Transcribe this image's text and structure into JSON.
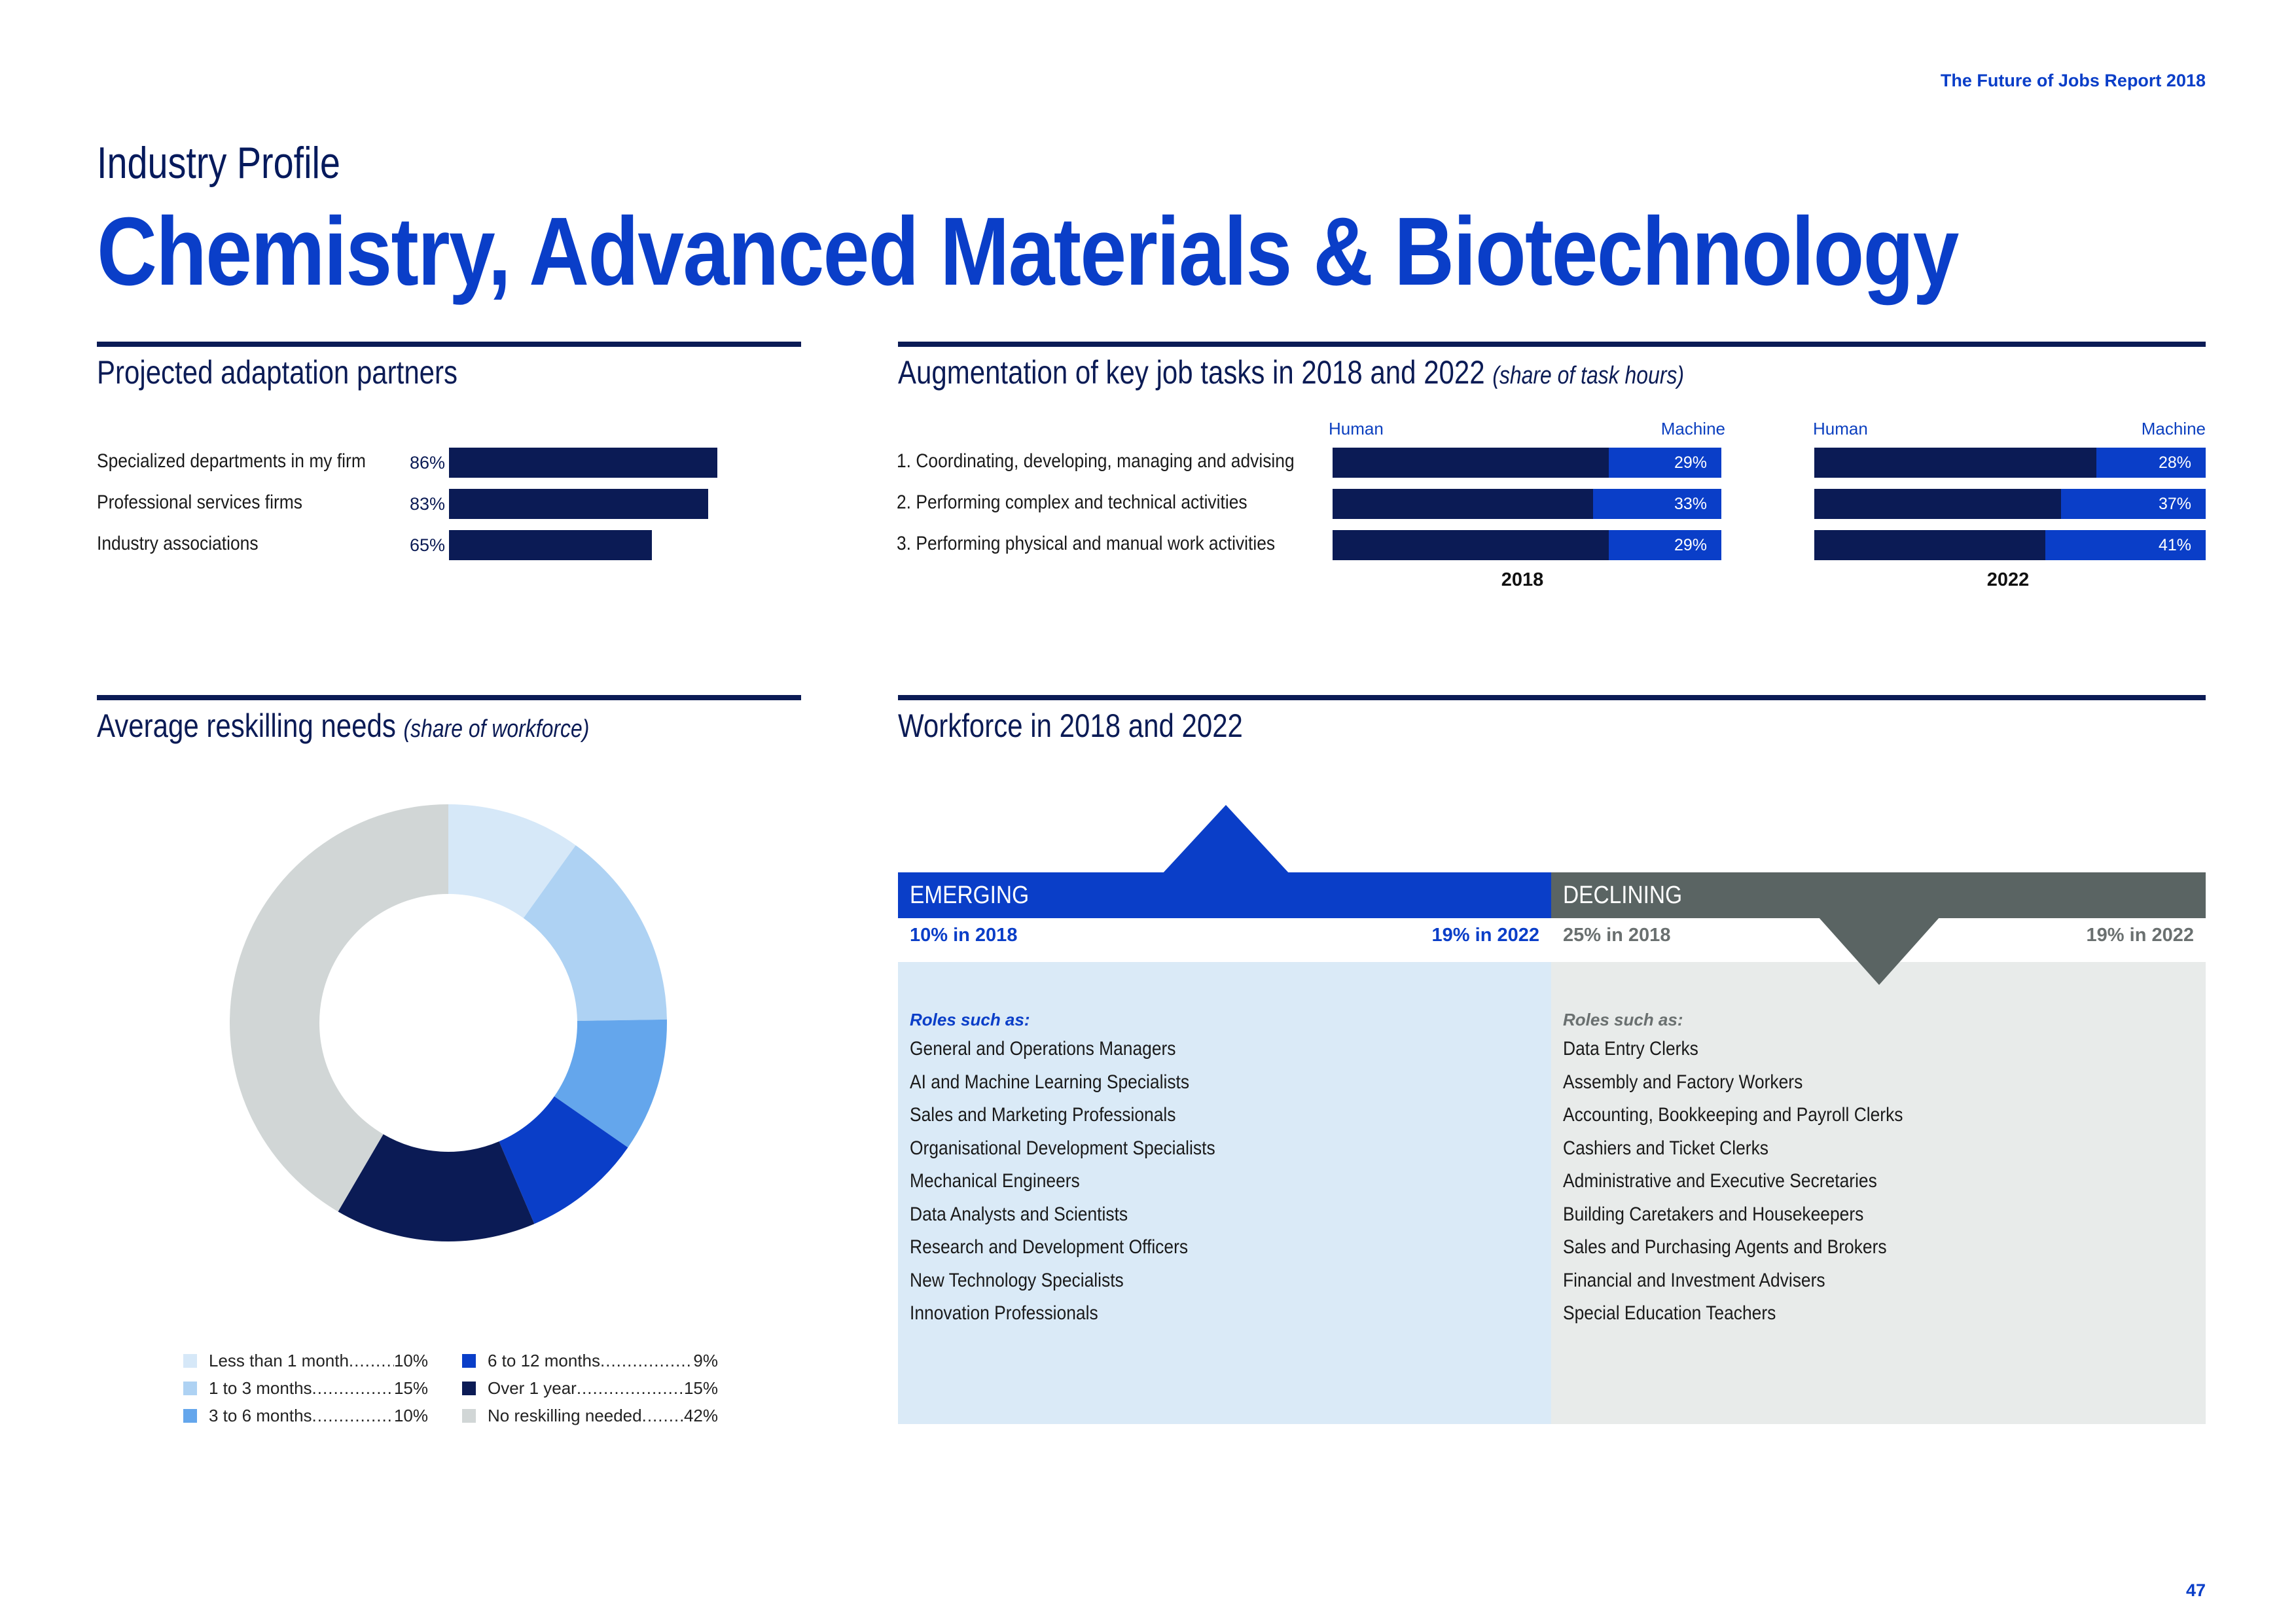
{
  "header": {
    "report_title": "The Future of Jobs Report 2018",
    "profile_label": "Industry Profile",
    "industry_title": "Chemistry, Advanced Materials & Biotechnology"
  },
  "partners": {
    "title": "Projected adaptation partners",
    "items": [
      {
        "label": "Specialized departments in my firm",
        "pct": "86%",
        "value": 86
      },
      {
        "label": "Professional services firms",
        "pct": "83%",
        "value": 83
      },
      {
        "label": "Industry associations",
        "pct": "65%",
        "value": 65
      }
    ]
  },
  "augmentation": {
    "title": "Augmentation of key job tasks in 2018 and 2022",
    "title_note": "(share of task hours)",
    "human_label": "Human",
    "machine_label": "Machine",
    "tasks": [
      "1.  Coordinating, developing, managing and advising",
      "2.  Performing complex and technical activities",
      "3.  Performing physical and manual work activities"
    ],
    "year_2018": "2018",
    "year_2022": "2022",
    "machine_2018": [
      {
        "label": "29%",
        "value": 29
      },
      {
        "label": "33%",
        "value": 33
      },
      {
        "label": "29%",
        "value": 29
      }
    ],
    "machine_2022": [
      {
        "label": "28%",
        "value": 28
      },
      {
        "label": "37%",
        "value": 37
      },
      {
        "label": "41%",
        "value": 41
      }
    ]
  },
  "reskilling": {
    "title": "Average reskilling needs",
    "title_note": "(share of workforce)",
    "segments": [
      {
        "name": "Less than 1 month",
        "value": 10,
        "label": "10%",
        "color": "#d6e8f8"
      },
      {
        "name": "1 to 3 months",
        "value": 15,
        "label": "15%",
        "color": "#aed2f3"
      },
      {
        "name": "3 to 6 months",
        "value": 10,
        "label": "10%",
        "color": "#64a6ec"
      },
      {
        "name": "6 to 12 months",
        "value": 9,
        "label": "9%",
        "color": "#0a3ec8"
      },
      {
        "name": "Over 1 year",
        "value": 15,
        "label": "15%",
        "color": "#0b1b55"
      },
      {
        "name": "No reskilling needed",
        "value": 42,
        "label": "42%",
        "color": "#d1d6d6"
      }
    ],
    "dots": "........................................"
  },
  "workforce": {
    "title": "Workforce in 2018 and 2022",
    "emerging": {
      "label": "EMERGING",
      "from": "10% in 2018",
      "to": "19% in 2022",
      "roles_label": "Roles such as:",
      "roles": [
        "General and Operations Managers",
        "AI and Machine Learning Specialists",
        "Sales and Marketing Professionals",
        "Organisational Development Specialists",
        "Mechanical Engineers",
        "Data Analysts and Scientists",
        "Research and Development Officers",
        "New Technology Specialists",
        "Innovation Professionals"
      ]
    },
    "declining": {
      "label": "DECLINING",
      "from": "25% in 2018",
      "to": "19% in 2022",
      "roles_label": "Roles such as:",
      "roles": [
        "Data Entry Clerks",
        "Assembly and Factory Workers",
        "Accounting,  Bookkeeping and Payroll Clerks",
        "Cashiers and Ticket Clerks",
        "Administrative and Executive Secretaries",
        "Building Caretakers and Housekeepers",
        "Sales and Purchasing Agents and Brokers",
        "Financial and Investment Advisers",
        "Special Education Teachers"
      ]
    }
  },
  "colors": {
    "navy": "#0b1b55",
    "blue": "#0a3ec8",
    "emerging_bg": "#daeaf7",
    "declining_bg": "#e8ebea",
    "declining_head": "#5a6463"
  },
  "page_number": "47"
}
